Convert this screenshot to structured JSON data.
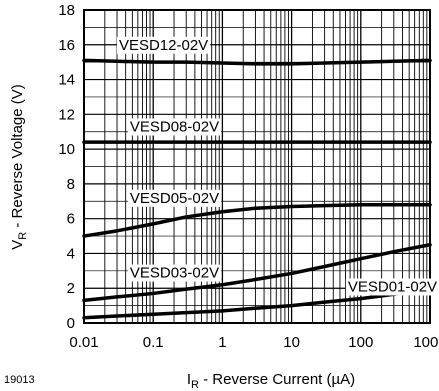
{
  "figure_id": "19013",
  "chart_data": {
    "type": "line",
    "x_scale": "log",
    "y_scale": "linear",
    "xlabel_main": "I",
    "xlabel_sub": "R",
    "xlabel_rest": " - Reverse Current (µA)",
    "ylabel_main": "V",
    "ylabel_sub": "R",
    "ylabel_rest": " - Reverse Voltage (V)",
    "xlim": [
      0.01,
      1000
    ],
    "ylim": [
      0,
      18
    ],
    "x_ticks": [
      0.01,
      0.1,
      1,
      10,
      100,
      1000
    ],
    "x_tick_labels": [
      "0.01",
      "0.1",
      "1",
      "10",
      "100",
      "1000"
    ],
    "y_ticks": [
      0,
      2,
      4,
      6,
      8,
      10,
      12,
      14,
      16,
      18
    ],
    "y_tick_labels": [
      "0",
      "2",
      "4",
      "6",
      "8",
      "10",
      "12",
      "14",
      "16",
      "18"
    ],
    "grid": true,
    "series": [
      {
        "name": "VESD12-02V",
        "label_at": [
          0.032,
          16.0
        ],
        "x": [
          0.01,
          0.03,
          0.1,
          0.3,
          1,
          3,
          10,
          30,
          100,
          300,
          1000
        ],
        "y": [
          15.1,
          15.05,
          15.0,
          15.0,
          14.95,
          14.9,
          14.9,
          14.95,
          15.0,
          15.05,
          15.1
        ]
      },
      {
        "name": "VESD08-02V",
        "label_at": [
          0.046,
          11.3
        ],
        "x": [
          0.01,
          0.1,
          1,
          10,
          100,
          1000
        ],
        "y": [
          10.4,
          10.4,
          10.4,
          10.4,
          10.4,
          10.4
        ]
      },
      {
        "name": "VESD05-02V",
        "label_at": [
          0.046,
          7.2
        ],
        "x": [
          0.01,
          0.03,
          0.1,
          0.3,
          1,
          3,
          10,
          30,
          100,
          300,
          1000
        ],
        "y": [
          5.0,
          5.3,
          5.7,
          6.1,
          6.4,
          6.6,
          6.7,
          6.75,
          6.8,
          6.8,
          6.8
        ]
      },
      {
        "name": "VESD03-02V",
        "label_at": [
          0.046,
          2.9
        ],
        "x": [
          0.01,
          0.03,
          0.1,
          0.3,
          1,
          3,
          10,
          30,
          100,
          300,
          1000
        ],
        "y": [
          1.3,
          1.5,
          1.7,
          1.95,
          2.2,
          2.5,
          2.85,
          3.25,
          3.7,
          4.1,
          4.5
        ]
      },
      {
        "name": "VESD01-02V",
        "label_at": [
          65,
          2.1
        ],
        "x": [
          0.01,
          0.03,
          0.1,
          0.3,
          1,
          3,
          10,
          30,
          100,
          300,
          1000
        ],
        "y": [
          0.3,
          0.4,
          0.5,
          0.6,
          0.7,
          0.85,
          1.0,
          1.2,
          1.4,
          1.65,
          1.9
        ]
      }
    ]
  }
}
